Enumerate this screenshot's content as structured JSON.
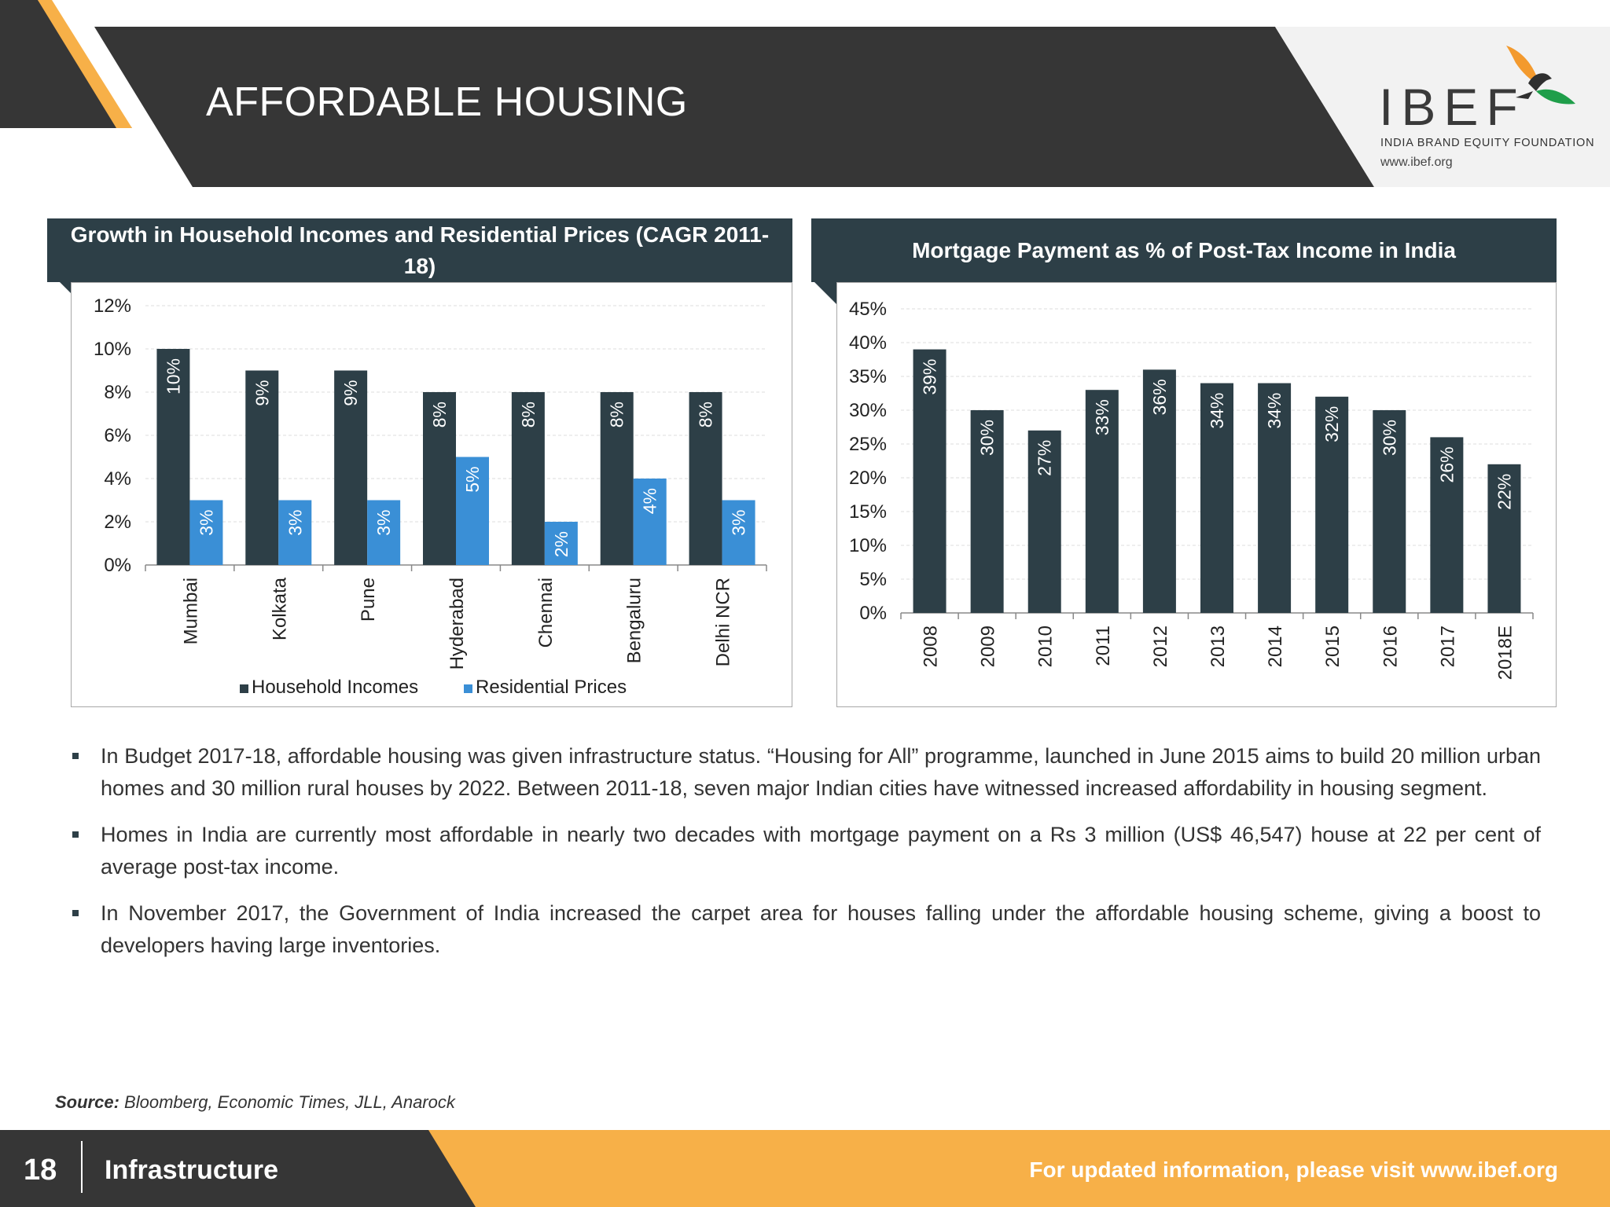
{
  "header": {
    "title": "AFFORDABLE HOUSING",
    "logo_text": "IBEF",
    "logo_subtitle": "INDIA BRAND EQUITY FOUNDATION",
    "logo_url": "www.ibef.org"
  },
  "colors": {
    "dark": "#2d3f47",
    "header_dark": "#363636",
    "blue": "#3a8fd6",
    "orange": "#f7b048",
    "green": "#1f9e4a"
  },
  "chart_data": [
    {
      "type": "bar",
      "title": "Growth in Household Incomes and Residential Prices (CAGR 2011-18)",
      "categories": [
        "Mumbai",
        "Kolkata",
        "Pune",
        "Hyderabad",
        "Chennai",
        "Bengaluru",
        "Delhi NCR"
      ],
      "series": [
        {
          "name": "Household Incomes",
          "values": [
            10,
            9,
            9,
            8,
            8,
            8,
            8
          ],
          "labels": [
            "10%",
            "9%",
            "9%",
            "8%",
            "8%",
            "8%",
            "8%"
          ]
        },
        {
          "name": "Residential Prices",
          "values": [
            3,
            3,
            3,
            5,
            2,
            4,
            3
          ],
          "labels": [
            "3%",
            "3%",
            "3%",
            "5%",
            "2%",
            "4%",
            "3%"
          ]
        }
      ],
      "ylim": [
        0,
        12
      ],
      "yticks": [
        "0%",
        "2%",
        "4%",
        "6%",
        "8%",
        "10%",
        "12%"
      ],
      "grid": true,
      "legend": "bottom"
    },
    {
      "type": "bar",
      "title": "Mortgage Payment as % of Post-Tax Income in India",
      "categories": [
        "2008",
        "2009",
        "2010",
        "2011",
        "2012",
        "2013",
        "2014",
        "2015",
        "2016",
        "2017",
        "2018E"
      ],
      "values": [
        39,
        30,
        27,
        33,
        36,
        34,
        34,
        32,
        30,
        26,
        22
      ],
      "labels": [
        "39%",
        "30%",
        "27%",
        "33%",
        "36%",
        "34%",
        "34%",
        "32%",
        "30%",
        "26%",
        "22%"
      ],
      "ylim": [
        0,
        45
      ],
      "yticks": [
        "0%",
        "5%",
        "10%",
        "15%",
        "20%",
        "25%",
        "30%",
        "35%",
        "40%",
        "45%"
      ],
      "grid": true
    }
  ],
  "bullets": [
    "In Budget 2017-18, affordable housing was given infrastructure status. “Housing for All” programme, launched in June 2015 aims to build 20 million urban homes and 30 million rural houses by 2022. Between 2011-18, seven major Indian cities have witnessed increased affordability in housing segment.",
    "Homes in India are currently most affordable in nearly two decades with mortgage payment on a Rs 3 million (US$ 46,547) house at 22 per cent of average post-tax income.",
    "In November 2017, the Government of India increased the carpet area for houses falling under the affordable housing scheme, giving a boost to developers having large inventories."
  ],
  "source": {
    "label": "Source:",
    "text": "Bloomberg,  Economic Times, JLL, Anarock"
  },
  "footer": {
    "page_number": "18",
    "section": "Infrastructure",
    "visit": "For updated information, please visit www.ibef.org"
  }
}
